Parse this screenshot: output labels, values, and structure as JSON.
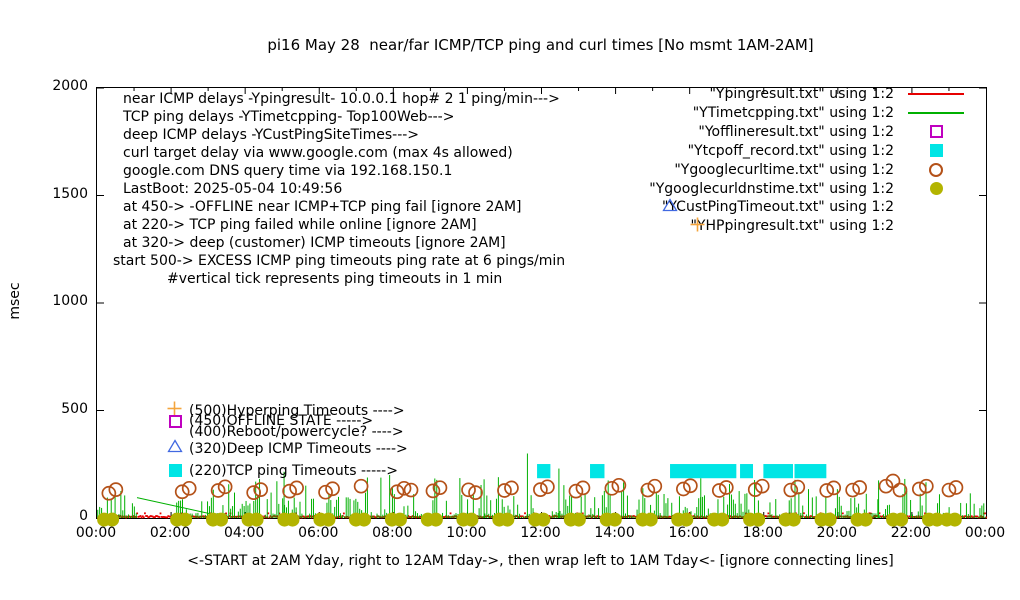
{
  "title": "pi16 May 28  near/far ICMP/TCP ping and curl times [No msmt 1AM-2AM]",
  "caption": "<-START at 2AM Yday, right to 12AM Tday->, then wrap left to 1AM Tday<- [ignore connecting lines]",
  "annotations": {
    "lines": [
      "near ICMP delays -Ypingresult- 10.0.0.1 hop# 2 1 ping/min--->",
      "TCP ping delays -YTimetcpping- Top100Web--->",
      "deep ICMP delays -YCustPingSiteTimes--->",
      "curl target delay via www.google.com (max 4s allowed)",
      "google.com DNS query time via 192.168.150.1",
      "LastBoot: 2025-05-04 10:49:56",
      "at 450-> -OFFLINE near ICMP+TCP ping fail [ignore 2AM]",
      "at 220-> TCP ping failed while online [ignore 2AM]",
      "at 320-> deep (customer) ICMP timeouts [ignore 2AM]",
      "start 500-> EXCESS ICMP ping timeouts ping rate at 6 pings/min",
      "#vertical tick represents ping timeouts in 1 min"
    ]
  },
  "marker_labels": [
    {
      "glyph": "plus-orange",
      "text": "(500)Hyperping Timeouts ---->",
      "msec": 500
    },
    {
      "glyph": "square-open-magenta",
      "text": "(450)OFFLINE STATE ----->",
      "msec": 450
    },
    {
      "glyph": "none",
      "text": "(400)Reboot/powercycle? ---->",
      "msec": 400
    },
    {
      "glyph": "triangle-open-blue",
      "text": "(320)Deep ICMP Timeouts ---->",
      "msec": 320
    },
    {
      "glyph": "square-filled-cyan",
      "text": "(220)TCP ping Timeouts ----->",
      "msec": 220
    }
  ],
  "legend": {
    "items": [
      {
        "label": "\"Ypingresult.txt\" using 1:2",
        "glyph": "line-red"
      },
      {
        "label": "\"YTimetcpping.txt\" using 1:2",
        "glyph": "line-green"
      },
      {
        "label": "\"Yofflineresult.txt\" using 1:2",
        "glyph": "square-open-magenta"
      },
      {
        "label": "\"Ytcpoff_record.txt\" using 1:2",
        "glyph": "square-filled-cyan"
      },
      {
        "label": "\"Ygooglecurltime.txt\" using 1:2",
        "glyph": "circle-open-darkorange"
      },
      {
        "label": "\"Ygooglecurldnstime.txt\" using 1:2",
        "glyph": "circle-filled-olive"
      },
      {
        "label": "\"YCustPingTimeout.txt\" using 1:2",
        "glyph": "triangle-open-blue"
      },
      {
        "label": "\"YHPpingresult.txt\" using 1:2",
        "glyph": "plus-orange"
      }
    ]
  },
  "colors": {
    "red": "#e60000",
    "green": "#00b000",
    "magenta": "#bf00bf",
    "cyan": "#00e5e5",
    "darkorange": "#b45118",
    "olive": "#b3b400",
    "blue": "#4169e1",
    "orange": "#f4a43c",
    "axis": "#000000"
  },
  "chart_data": {
    "type": "line",
    "title": "pi16 May 28  near/far ICMP/TCP ping and curl times [No msmt 1AM-2AM]",
    "x_axis": {
      "tick_labels": [
        "00:00",
        "02:00",
        "04:00",
        "06:00",
        "08:00",
        "10:00",
        "12:00",
        "14:00",
        "16:00",
        "18:00",
        "20:00",
        "22:00",
        "00:00"
      ],
      "range_hours": [
        0,
        24
      ],
      "major_step_h": 2,
      "minor_step_h": 1
    },
    "y_axis": {
      "label": "msec",
      "ticks": [
        0,
        500,
        1000,
        1500,
        2000
      ],
      "range": [
        0,
        2000
      ]
    },
    "series": [
      {
        "name": "Ypingresult.txt",
        "kind": "noise-baseline",
        "color_key": "red",
        "params": {
          "seed": 99,
          "step_h": 0.03,
          "min_msec": 2,
          "max_msec": 10,
          "spike_chance": 0.04,
          "spike_msec": 22
        }
      },
      {
        "name": "YTimetcpping.txt",
        "kind": "noise-grass",
        "color_key": "green",
        "params": {
          "seed": 1234,
          "step_h": 0.052,
          "base_max": 22,
          "mid_chance": 0.35,
          "mid_max": 115,
          "high_chance": 0.12,
          "high_max": 190
        },
        "gap_hours": [
          1.08,
          2.07
        ],
        "tall_spikes": [
          [
            5.05,
            215
          ],
          [
            7.9,
            200
          ],
          [
            10.45,
            180
          ],
          [
            11.62,
            300
          ],
          [
            12.47,
            230
          ],
          [
            16.3,
            185
          ],
          [
            21.1,
            175
          ]
        ],
        "connect_line": [
          [
            1.08,
            95
          ],
          [
            3.5,
            3
          ]
        ]
      },
      {
        "name": "Yofflineresult.txt",
        "kind": "points",
        "color_key": "magenta",
        "points": []
      },
      {
        "name": "Ytcpoff_record.txt",
        "kind": "bars",
        "color_key": "cyan",
        "center_msec": 218,
        "half_msec": 33,
        "segments_hours": [
          [
            11.88,
            12.24
          ],
          [
            13.31,
            13.7
          ],
          [
            15.47,
            17.26
          ],
          [
            17.36,
            17.71
          ],
          [
            17.99,
            18.79
          ],
          [
            18.83,
            19.69
          ]
        ]
      },
      {
        "name": "Ygooglecurltime.txt",
        "kind": "open-circles",
        "color_key": "darkorange",
        "clusters": [
          [
            0.32,
            [
              115,
              132
            ]
          ],
          [
            2.3,
            [
              122,
              138
            ]
          ],
          [
            3.27,
            [
              128,
              145
            ]
          ],
          [
            4.23,
            [
              118,
              132
            ]
          ],
          [
            5.2,
            [
              125,
              140
            ]
          ],
          [
            6.17,
            [
              120,
              136
            ]
          ],
          [
            7.13,
            [
              148
            ]
          ],
          [
            8.1,
            [
              122,
              138,
              130
            ]
          ],
          [
            9.07,
            [
              126,
              141
            ]
          ],
          [
            10.03,
            [
              131,
              118
            ]
          ],
          [
            11.0,
            [
              128,
              140
            ]
          ],
          [
            11.97,
            [
              132,
              145
            ]
          ],
          [
            12.93,
            [
              125,
              140
            ]
          ],
          [
            13.9,
            [
              138,
              152
            ]
          ],
          [
            14.87,
            [
              130,
              148
            ]
          ],
          [
            15.83,
            [
              135,
              150
            ]
          ],
          [
            16.8,
            [
              128,
              142
            ]
          ],
          [
            17.77,
            [
              132,
              148
            ]
          ],
          [
            18.73,
            [
              130,
              144
            ]
          ],
          [
            19.7,
            [
              128,
              140
            ]
          ],
          [
            20.4,
            [
              130,
              142
            ]
          ],
          [
            21.3,
            [
              148,
              172,
              130
            ]
          ],
          [
            22.2,
            [
              135,
              148
            ]
          ],
          [
            23.0,
            [
              130,
              142
            ]
          ]
        ]
      },
      {
        "name": "Ygooglecurldnstime.txt",
        "kind": "filled-dots",
        "color_key": "olive",
        "msec": 2,
        "hours": [
          0.3,
          2.27,
          3.24,
          4.2,
          5.17,
          6.14,
          7.1,
          8.07,
          9.04,
          10.0,
          10.97,
          11.94,
          12.9,
          13.87,
          14.84,
          15.8,
          16.77,
          17.74,
          18.7,
          19.67,
          20.64,
          21.6,
          22.57,
          23.05
        ]
      },
      {
        "name": "YCustPingTimeout.txt",
        "kind": "points",
        "color_key": "blue",
        "points": []
      },
      {
        "name": "YHPpingresult.txt",
        "kind": "points",
        "color_key": "orange",
        "points": []
      }
    ]
  }
}
